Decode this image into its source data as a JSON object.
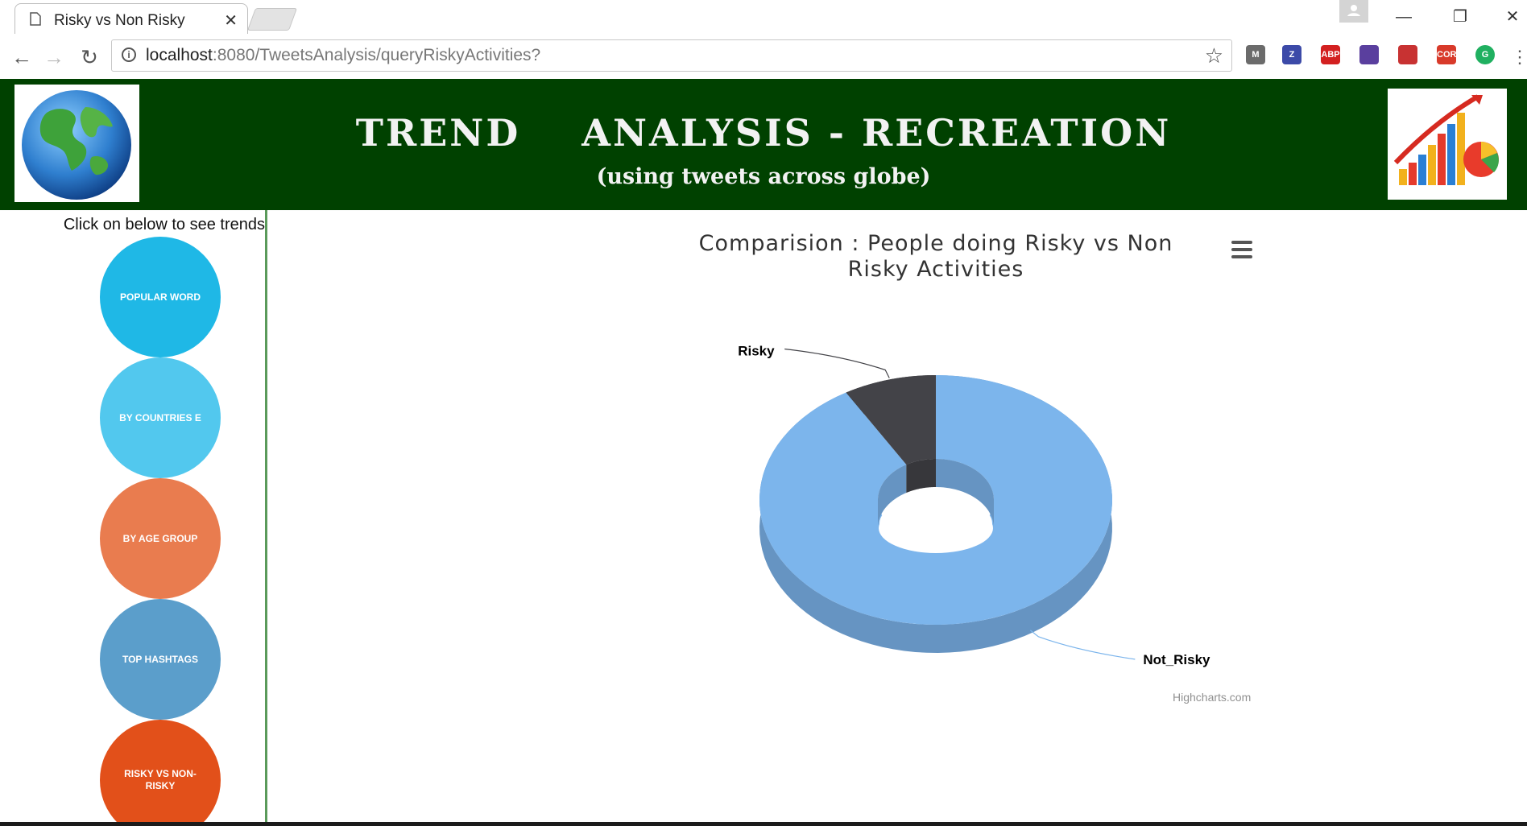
{
  "browser": {
    "tab_title": "Risky vs Non Risky",
    "url_host": "localhost",
    "url_path": ":8080/TweetsAnalysis/queryRiskyActivities?",
    "extensions": [
      {
        "name": "M",
        "color": "#6b6b6b"
      },
      {
        "name": "Z",
        "color": "#3c4aa8"
      },
      {
        "name": "ABP",
        "color": "#d32020"
      },
      {
        "name": "",
        "color": "#5a3f9e"
      },
      {
        "name": "",
        "color": "#c83232"
      },
      {
        "name": "CORS",
        "color": "#d83a2a"
      },
      {
        "name": "G",
        "color": "#20b060"
      }
    ]
  },
  "header": {
    "title": "TREND    ANALYSIS - RECREATION",
    "subtitle": "(using tweets across globe)"
  },
  "sidebar": {
    "prompt": "Click on below to see trends",
    "buttons": [
      {
        "label": "POPULAR WORD",
        "color": "#1fb8e6"
      },
      {
        "label": "BY COUNTRIES E",
        "color": "#52c8ee"
      },
      {
        "label": "BY AGE GROUP",
        "color": "#e97c4f"
      },
      {
        "label": "TOP HASHTAGS",
        "color": "#5b9ecb"
      },
      {
        "label": "RISKY VS NON-RISKY",
        "color": "#e2501a"
      }
    ]
  },
  "chart": {
    "title": "Comparision : People doing Risky vs Non Risky Activities",
    "credits": "Highcharts.com"
  },
  "chart_data": {
    "type": "pie",
    "title": "Comparision : People doing Risky vs Non Risky Activities",
    "donut": true,
    "three_d": true,
    "legend": "none",
    "series": [
      {
        "values": [
          {
            "name": "Risky",
            "y": 8.5,
            "color": "#434348"
          },
          {
            "name": "Not_Risky",
            "y": 91.5,
            "color": "#7cb5ec"
          }
        ]
      }
    ]
  }
}
